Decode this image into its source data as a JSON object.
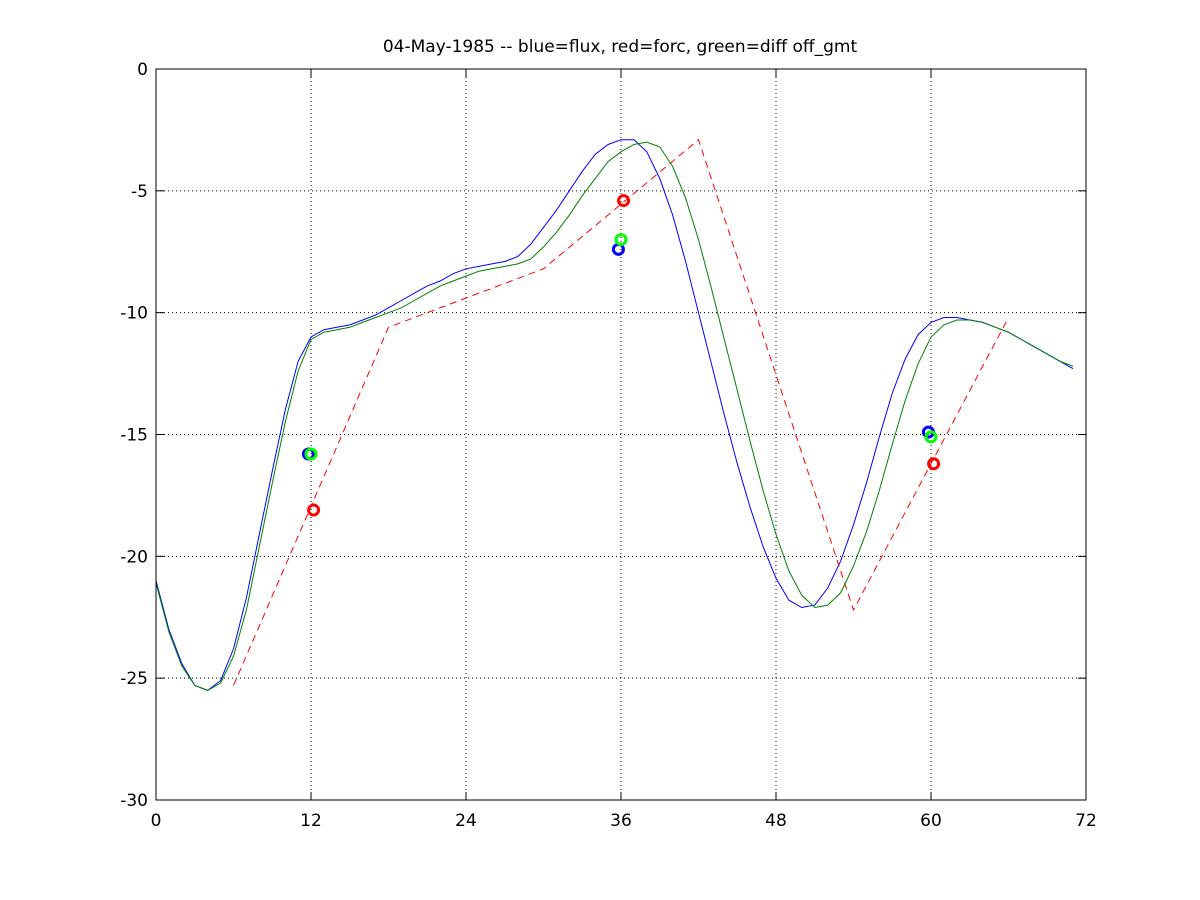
{
  "chart_data": {
    "type": "line",
    "title": "04-May-1985 -- blue=flux, red=forc, green=diff off_gmt",
    "xlabel": "",
    "ylabel": "",
    "xlim": [
      0,
      72
    ],
    "ylim": [
      -30,
      0
    ],
    "xticks": [
      0,
      12,
      24,
      36,
      48,
      60,
      72
    ],
    "yticks": [
      0,
      -5,
      -10,
      -15,
      -20,
      -25,
      -30
    ],
    "grid": true,
    "series": [
      {
        "color": "#0000ff",
        "style": "solid",
        "x": [
          0,
          1,
          2,
          3,
          4,
          5,
          6,
          7,
          8,
          9,
          10,
          11,
          12,
          13,
          14,
          15,
          16,
          17,
          18,
          19,
          20,
          21,
          22,
          23,
          24,
          25,
          26,
          27,
          28,
          29,
          30,
          31,
          32,
          33,
          34,
          35,
          36,
          37,
          38,
          39,
          40,
          41,
          42,
          43,
          44,
          45,
          46,
          47,
          48,
          49,
          50,
          51,
          52,
          53,
          54,
          55,
          56,
          57,
          58,
          59,
          60,
          61,
          62,
          63,
          64,
          65,
          66,
          67,
          68,
          69,
          70,
          71
        ],
        "y": [
          -21.0,
          -23.0,
          -24.4,
          -25.3,
          -25.5,
          -25.1,
          -23.8,
          -21.7,
          -19.1,
          -16.5,
          -14.0,
          -12.0,
          -11.0,
          -10.7,
          -10.6,
          -10.5,
          -10.3,
          -10.1,
          -9.8,
          -9.5,
          -9.2,
          -8.9,
          -8.7,
          -8.4,
          -8.2,
          -8.1,
          -8.0,
          -7.9,
          -7.7,
          -7.2,
          -6.5,
          -5.8,
          -5.0,
          -4.2,
          -3.5,
          -3.1,
          -2.9,
          -2.9,
          -3.4,
          -4.5,
          -6.0,
          -7.9,
          -10.0,
          -12.1,
          -14.2,
          -16.2,
          -18.0,
          -19.6,
          -20.9,
          -21.8,
          -22.1,
          -22.0,
          -21.3,
          -20.2,
          -18.7,
          -17.0,
          -15.1,
          -13.3,
          -11.9,
          -10.9,
          -10.4,
          -10.2,
          -10.2,
          -10.3,
          -10.4,
          -10.6,
          -10.8,
          -11.1,
          -11.4,
          -11.7,
          -12.0,
          -12.3
        ]
      },
      {
        "color": "#ff0000",
        "style": "dashed",
        "x": [
          6,
          18,
          30,
          42,
          54,
          66
        ],
        "y": [
          -25.3,
          -10.6,
          -8.2,
          -2.9,
          -22.2,
          -10.2
        ]
      },
      {
        "color": "#008000",
        "style": "solid",
        "x": [
          0,
          1,
          2,
          3,
          4,
          5,
          6,
          7,
          8,
          9,
          10,
          11,
          12,
          13,
          14,
          15,
          16,
          17,
          18,
          19,
          20,
          21,
          22,
          23,
          24,
          25,
          26,
          27,
          28,
          29,
          30,
          31,
          32,
          33,
          34,
          35,
          36,
          37,
          38,
          39,
          40,
          41,
          42,
          43,
          44,
          45,
          46,
          47,
          48,
          49,
          50,
          51,
          52,
          53,
          54,
          55,
          56,
          57,
          58,
          59,
          60,
          61,
          62,
          63,
          64,
          65,
          66,
          67,
          68,
          69,
          70,
          71
        ],
        "y": [
          -21.1,
          -23.1,
          -24.5,
          -25.3,
          -25.5,
          -25.2,
          -24.1,
          -22.2,
          -19.6,
          -17.0,
          -14.5,
          -12.4,
          -11.1,
          -10.8,
          -10.7,
          -10.6,
          -10.4,
          -10.2,
          -10.0,
          -9.8,
          -9.5,
          -9.2,
          -8.9,
          -8.7,
          -8.5,
          -8.3,
          -8.2,
          -8.1,
          -8.0,
          -7.8,
          -7.3,
          -6.7,
          -6.0,
          -5.2,
          -4.5,
          -3.8,
          -3.4,
          -3.1,
          -3.0,
          -3.2,
          -4.0,
          -5.3,
          -7.0,
          -9.0,
          -11.1,
          -13.2,
          -15.3,
          -17.3,
          -19.1,
          -20.6,
          -21.6,
          -22.1,
          -22.0,
          -21.5,
          -20.4,
          -19.0,
          -17.3,
          -15.4,
          -13.6,
          -12.1,
          -11.0,
          -10.5,
          -10.3,
          -10.3,
          -10.4,
          -10.6,
          -10.8,
          -11.1,
          -11.4,
          -11.7,
          -12.0,
          -12.2
        ]
      }
    ],
    "markers": [
      {
        "color": "#0000ff",
        "x": 11.8,
        "y": -15.8
      },
      {
        "color": "#00ff00",
        "x": 12.0,
        "y": -15.8
      },
      {
        "color": "#ff0000",
        "x": 12.2,
        "y": -18.1
      },
      {
        "color": "#0000ff",
        "x": 35.8,
        "y": -7.4
      },
      {
        "color": "#00ff00",
        "x": 36.0,
        "y": -7.0
      },
      {
        "color": "#ff0000",
        "x": 36.2,
        "y": -5.4
      },
      {
        "color": "#0000ff",
        "x": 59.8,
        "y": -14.9
      },
      {
        "color": "#00ff00",
        "x": 60.0,
        "y": -15.1
      },
      {
        "color": "#ff0000",
        "x": 60.2,
        "y": -16.2
      }
    ]
  }
}
